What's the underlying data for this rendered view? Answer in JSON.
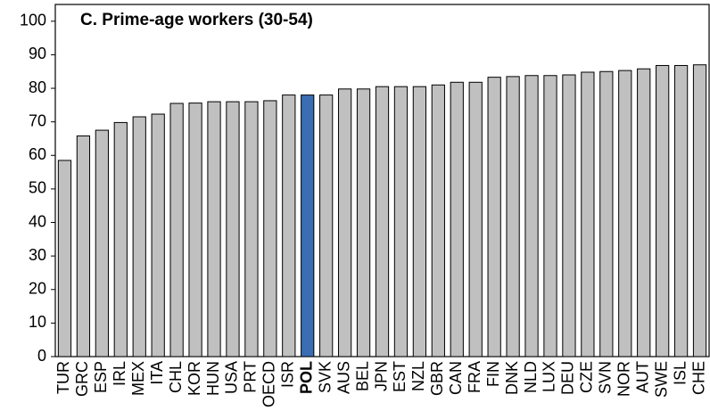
{
  "chart_data": {
    "type": "bar",
    "title": "C. Prime-age workers (30-54)",
    "categories": [
      "TUR",
      "GRC",
      "ESP",
      "IRL",
      "MEX",
      "ITA",
      "CHL",
      "KOR",
      "HUN",
      "USA",
      "PRT",
      "OECD",
      "ISR",
      "POL",
      "SVK",
      "AUS",
      "BEL",
      "JPN",
      "EST",
      "NZL",
      "GBR",
      "CAN",
      "FRA",
      "FIN",
      "DNK",
      "NLD",
      "LUX",
      "DEU",
      "CZE",
      "SVN",
      "NOR",
      "AUT",
      "SWE",
      "ISL",
      "CHE"
    ],
    "values": [
      58.5,
      65.8,
      67.5,
      69.8,
      71.5,
      72.3,
      75.5,
      75.6,
      76,
      76,
      76,
      76.3,
      78,
      78,
      78,
      79.8,
      79.8,
      80.5,
      80.5,
      80.5,
      81,
      81.8,
      81.8,
      83.3,
      83.5,
      83.8,
      83.8,
      84,
      84.8,
      85,
      85.3,
      85.8,
      86.8,
      86.8,
      87
    ],
    "color": "#c0c0c0",
    "colors": [
      "#c0c0c0",
      "#c0c0c0",
      "#c0c0c0",
      "#c0c0c0",
      "#c0c0c0",
      "#c0c0c0",
      "#c0c0c0",
      "#c0c0c0",
      "#c0c0c0",
      "#c0c0c0",
      "#c0c0c0",
      "#c0c0c0",
      "#c0c0c0",
      "#3a6db3",
      "#c0c0c0",
      "#c0c0c0",
      "#c0c0c0",
      "#c0c0c0",
      "#c0c0c0",
      "#c0c0c0",
      "#c0c0c0",
      "#c0c0c0",
      "#c0c0c0",
      "#c0c0c0",
      "#c0c0c0",
      "#c0c0c0",
      "#c0c0c0",
      "#c0c0c0",
      "#c0c0c0",
      "#c0c0c0",
      "#c0c0c0",
      "#c0c0c0",
      "#c0c0c0",
      "#c0c0c0",
      "#c0c0c0"
    ],
    "ylim": [
      0,
      105
    ],
    "yticks": [
      0,
      10,
      20,
      30,
      40,
      50,
      60,
      70,
      80,
      90,
      100
    ],
    "grid": false
  }
}
